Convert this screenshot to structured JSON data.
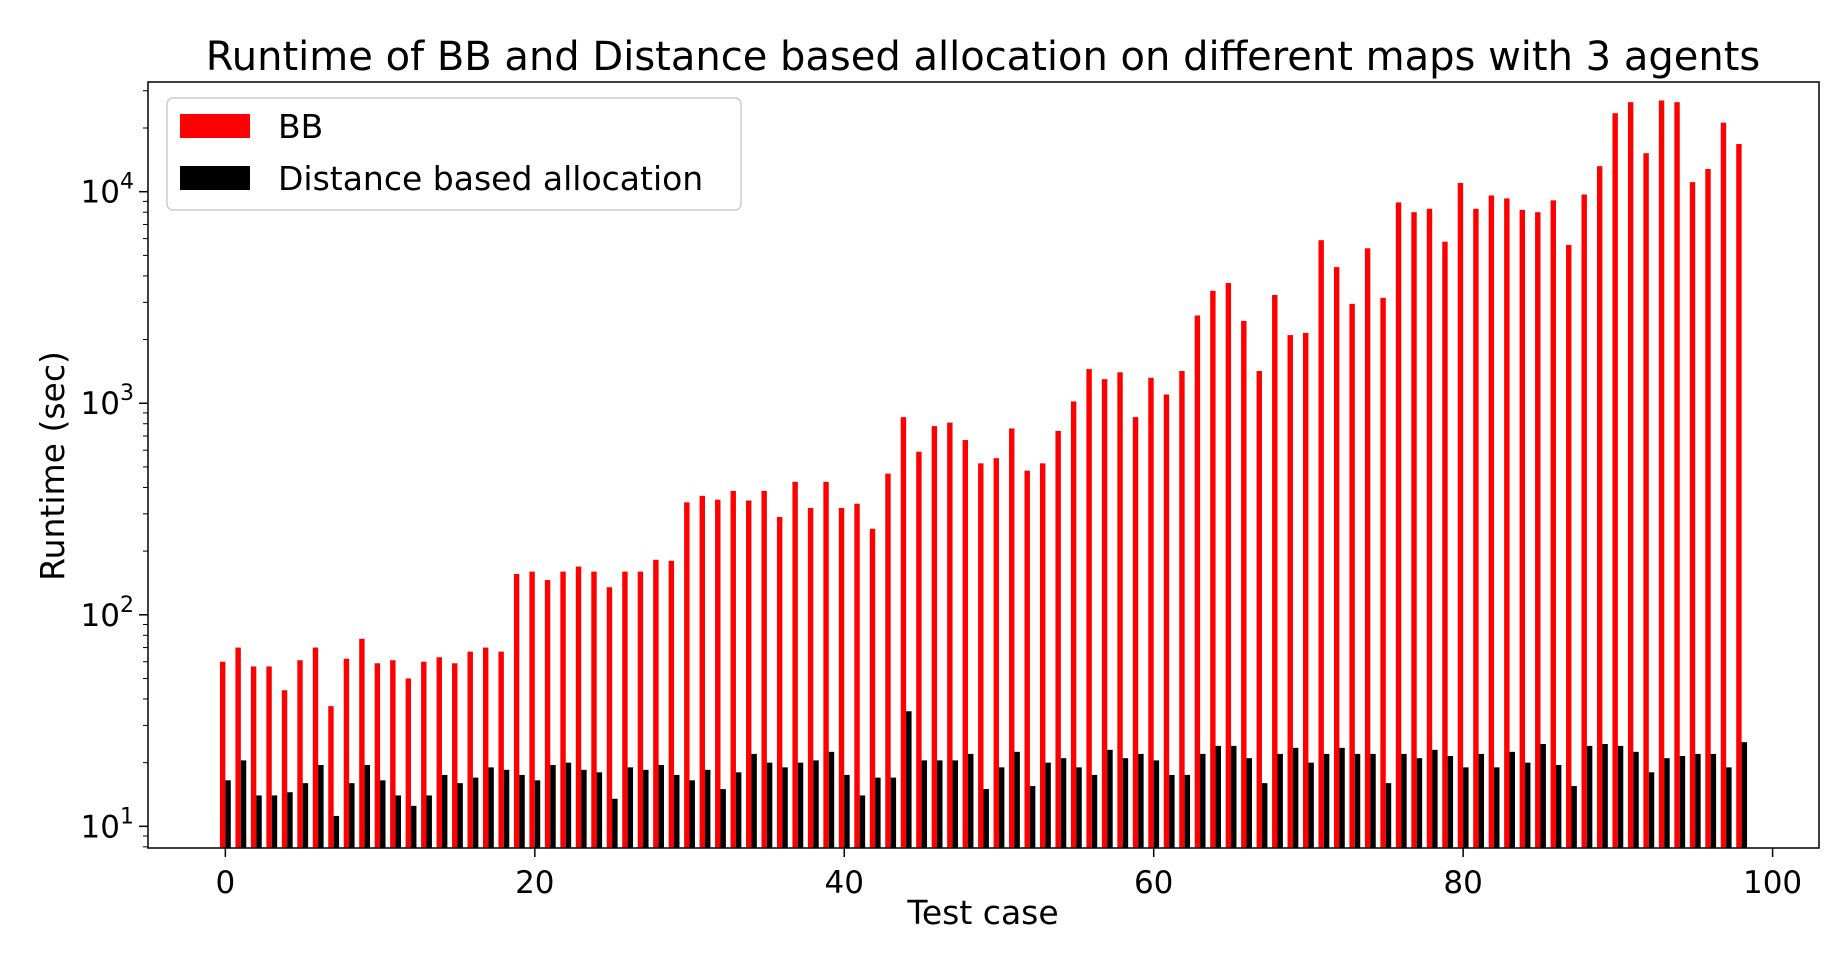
{
  "chart_data": {
    "type": "bar",
    "title": "Runtime of BB and Distance based allocation on different maps with 3 agents",
    "xlabel": "Test case",
    "ylabel": "Runtime (sec)",
    "yscale": "log",
    "xlim": [
      -5,
      103
    ],
    "ylim": [
      7.9,
      33000
    ],
    "x_ticks": [
      "0",
      "20",
      "40",
      "60",
      "80",
      "100"
    ],
    "y_ticks": [
      {
        "base": "10",
        "exp": "1"
      },
      {
        "base": "10",
        "exp": "2"
      },
      {
        "base": "10",
        "exp": "3"
      },
      {
        "base": "10",
        "exp": "4"
      }
    ],
    "grid": false,
    "legend_position": "top-left",
    "x": [
      0,
      1,
      2,
      3,
      4,
      5,
      6,
      7,
      8,
      9,
      10,
      11,
      12,
      13,
      14,
      15,
      16,
      17,
      18,
      19,
      20,
      21,
      22,
      23,
      24,
      25,
      26,
      27,
      28,
      29,
      30,
      31,
      32,
      33,
      34,
      35,
      36,
      37,
      38,
      39,
      40,
      41,
      42,
      43,
      44,
      45,
      46,
      47,
      48,
      49,
      50,
      51,
      52,
      53,
      54,
      55,
      56,
      57,
      58,
      59,
      60,
      61,
      62,
      63,
      64,
      65,
      66,
      67,
      68,
      69,
      70,
      71,
      72,
      73,
      74,
      75,
      76,
      77,
      78,
      79,
      80,
      81,
      82,
      83,
      84,
      85,
      86,
      87,
      88,
      89,
      90,
      91,
      92,
      93,
      94,
      95,
      96,
      97,
      98
    ],
    "series": [
      {
        "name": "BB",
        "color": "#ff0000",
        "values": [
          60,
          70,
          57,
          57,
          44,
          61,
          70,
          37,
          62,
          77,
          59,
          61,
          50,
          60,
          63,
          59,
          67,
          70,
          67,
          156,
          160,
          146,
          160,
          169,
          160,
          135,
          160,
          160,
          182,
          180,
          340,
          365,
          350,
          385,
          347,
          385,
          290,
          425,
          320,
          425,
          320,
          335,
          255,
          465,
          860,
          590,
          780,
          810,
          670,
          520,
          550,
          760,
          480,
          520,
          740,
          1020,
          1450,
          1300,
          1400,
          860,
          1320,
          1100,
          1420,
          2600,
          3400,
          3700,
          2450,
          1420,
          3250,
          2100,
          2150,
          5900,
          4400,
          2950,
          5400,
          3150,
          8900,
          8000,
          8300,
          5800,
          11000,
          8300,
          9600,
          9300,
          8200,
          8000,
          9100,
          5600,
          9700,
          13200,
          23500,
          26500,
          15200,
          27000,
          26500,
          11100,
          12800,
          21200,
          16800
        ]
      },
      {
        "name": "Distance based allocation",
        "color": "#000000",
        "values": [
          16.5,
          20.5,
          14,
          14,
          14.5,
          16,
          19.5,
          11.2,
          16,
          19.5,
          16.5,
          14,
          12.5,
          14,
          17.5,
          16,
          17,
          19,
          18.5,
          17.5,
          16.5,
          19.5,
          20,
          18.5,
          18,
          13.5,
          19,
          18.5,
          19.5,
          17.5,
          16.5,
          18.5,
          15,
          18,
          22,
          20,
          19,
          20,
          20.5,
          22.5,
          17.5,
          14,
          17,
          17,
          35,
          20.5,
          20.5,
          20.5,
          22,
          15,
          19,
          22.5,
          15.5,
          20,
          21,
          19,
          17.5,
          23,
          21,
          22,
          20.5,
          17.5,
          17.5,
          22,
          24,
          24,
          21,
          16,
          22,
          23.5,
          20,
          22,
          23.5,
          22,
          22,
          16,
          22,
          21,
          23,
          21.5,
          19,
          22,
          19,
          22.5,
          20,
          24.5,
          19.5,
          15.5,
          24,
          24.5,
          24,
          22.5,
          18,
          21,
          21.5,
          22,
          22,
          19,
          25
        ]
      }
    ]
  }
}
